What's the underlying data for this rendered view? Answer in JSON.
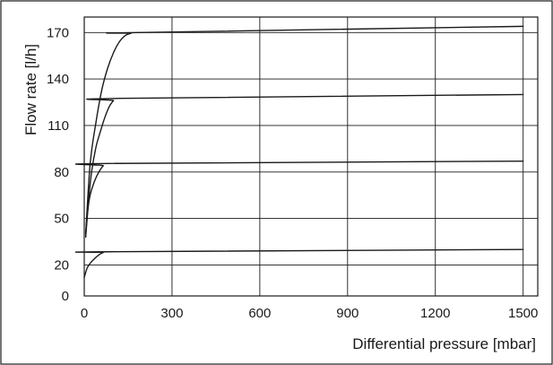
{
  "chart_data": {
    "type": "line",
    "title": "",
    "xlabel": "Differential pressure [mbar]",
    "ylabel": "Flow rate [l/h]",
    "xlim": [
      0,
      1550
    ],
    "ylim": [
      0,
      180
    ],
    "xticks": [
      0,
      300,
      600,
      900,
      1200,
      1500
    ],
    "yticks": [
      0,
      20,
      50,
      80,
      110,
      140,
      170
    ],
    "grid": true,
    "legend": "none",
    "series": [
      {
        "x": [
          0,
          10,
          20,
          35,
          50,
          65,
          80,
          1500
        ],
        "y": [
          12,
          18,
          21,
          24,
          26.5,
          28,
          28.5,
          30
        ]
      },
      {
        "x": [
          5,
          12,
          20,
          35,
          50,
          65,
          80,
          1500
        ],
        "y": [
          40,
          55,
          65,
          74,
          80,
          84,
          85.5,
          87
        ]
      },
      {
        "x": [
          5,
          15,
          25,
          40,
          55,
          70,
          85,
          100,
          115,
          1500
        ],
        "y": [
          38,
          62,
          80,
          96,
          106,
          115,
          122,
          126,
          127.5,
          130
        ]
      },
      {
        "x": [
          5,
          20,
          40,
          60,
          80,
          100,
          120,
          140,
          160,
          180,
          1500
        ],
        "y": [
          40,
          85,
          112,
          133,
          147,
          157,
          164,
          168,
          169.5,
          170,
          174
        ]
      }
    ]
  },
  "colors": {
    "line": "#1a1a1a",
    "grid": "#1a1a1a",
    "background": "#ffffff"
  }
}
